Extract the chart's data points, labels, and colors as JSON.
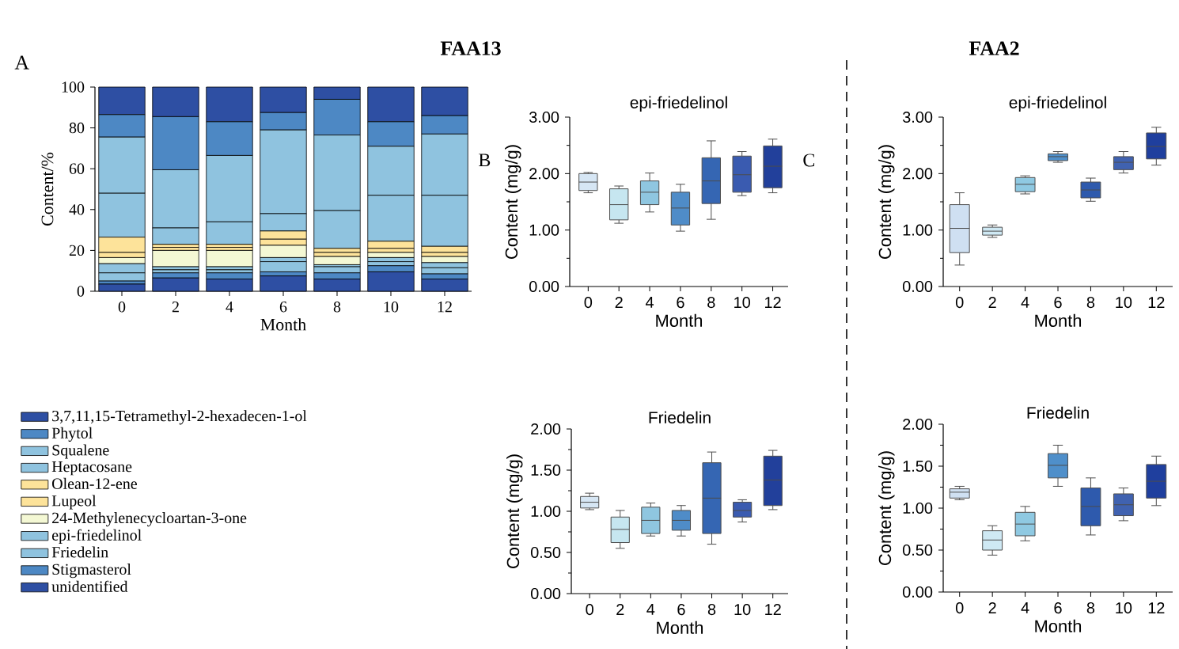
{
  "chart_data": [
    {
      "type": "bar",
      "stacked": true,
      "annotations": [
        "A"
      ],
      "xlabel": "Month",
      "ylabel": "Content/%",
      "categories": [
        "0",
        "2",
        "4",
        "6",
        "8",
        "10",
        "12"
      ],
      "ylim": [
        0,
        100
      ],
      "yticks": [
        0,
        20,
        40,
        60,
        80,
        100
      ],
      "legend": "bottom left",
      "series": [
        {
          "name": "unidentified",
          "color": "#2e4fa3",
          "values": [
            3.5,
            6.5,
            6,
            7.5,
            6,
            9.5,
            6
          ]
        },
        {
          "name": "Stigmasterol",
          "color": "#4d88c4",
          "values": [
            1.5,
            2.5,
            3,
            2,
            3,
            3,
            2.5
          ]
        },
        {
          "name": "Friedelin",
          "color": "#8fc3df",
          "values": [
            4,
            1.5,
            1.5,
            5,
            3,
            2,
            3
          ]
        },
        {
          "name": "epi-friedelinol",
          "color": "#8fc3df",
          "values": [
            4.5,
            1.5,
            1.5,
            2,
            1,
            2,
            2.5
          ]
        },
        {
          "name": "24-Methylenecycloartan-3-one",
          "color": "#f4f8d4",
          "values": [
            3,
            8,
            8,
            6,
            4,
            2.5,
            3
          ]
        },
        {
          "name": "Lupeol",
          "color": "#fde39a",
          "values": [
            2.5,
            1.5,
            1.5,
            3,
            2,
            2,
            2
          ]
        },
        {
          "name": "Olean-12-ene",
          "color": "#fde39a",
          "values": [
            7.5,
            1.5,
            1.5,
            4,
            2,
            3.5,
            3
          ]
        },
        {
          "name": "Heptacosane",
          "color": "#8fc3df",
          "values": [
            21.5,
            8,
            11,
            8.5,
            18.5,
            22.5,
            25
          ]
        },
        {
          "name": "Squalene",
          "color": "#8fc3df",
          "values": [
            27.5,
            28.5,
            32.5,
            41,
            37,
            24,
            30
          ]
        },
        {
          "name": "Phytol",
          "color": "#4d88c4",
          "values": [
            11,
            26,
            16.5,
            8.5,
            17.5,
            12,
            9
          ]
        },
        {
          "name": "3,7,11,15-Tetramethyl-2-hexadecen-1-ol",
          "color": "#2e4fa3",
          "values": [
            13.5,
            14.5,
            17,
            12.5,
            6,
            17,
            14
          ]
        }
      ]
    },
    {
      "type": "box",
      "title": "epi-friedelinol",
      "annotations": [
        "FAA13",
        "B"
      ],
      "xlabel": "Month",
      "ylabel": "Content (mg/g)",
      "categories": [
        "0",
        "2",
        "4",
        "6",
        "8",
        "10",
        "12"
      ],
      "ylim": [
        0,
        3
      ],
      "yticks": [
        {
          "value": 0,
          "label": "0.00"
        },
        {
          "value": 1,
          "label": "1.00"
        },
        {
          "value": 2,
          "label": "2.00"
        },
        {
          "value": 3,
          "label": "3.00"
        }
      ],
      "colors": [
        "#d6e6f4",
        "#c6e6f0",
        "#8fc6e0",
        "#4f8cc8",
        "#3566b3",
        "#3a5bb0",
        "#22409b"
      ],
      "boxes": [
        {
          "low": 1.66,
          "q1": 1.7,
          "median": 1.85,
          "q3": 2.0,
          "high": 2.02
        },
        {
          "low": 1.12,
          "q1": 1.18,
          "median": 1.45,
          "q3": 1.73,
          "high": 1.78
        },
        {
          "low": 1.32,
          "q1": 1.45,
          "median": 1.67,
          "q3": 1.87,
          "high": 2.01
        },
        {
          "low": 0.98,
          "q1": 1.09,
          "median": 1.39,
          "q3": 1.67,
          "high": 1.81
        },
        {
          "low": 1.19,
          "q1": 1.47,
          "median": 1.87,
          "q3": 2.28,
          "high": 2.58
        },
        {
          "low": 1.61,
          "q1": 1.67,
          "median": 1.98,
          "q3": 2.31,
          "high": 2.39
        },
        {
          "low": 1.66,
          "q1": 1.75,
          "median": 2.13,
          "q3": 2.49,
          "high": 2.61
        }
      ]
    },
    {
      "type": "box",
      "title": "Friedelin",
      "xlabel": "Month",
      "ylabel": "Content (mg/g)",
      "categories": [
        "0",
        "2",
        "4",
        "6",
        "8",
        "10",
        "12"
      ],
      "ylim": [
        0,
        2
      ],
      "yticks": [
        {
          "value": 0,
          "label": "0.00"
        },
        {
          "value": 0.5,
          "label": "0.50"
        },
        {
          "value": 1,
          "label": "1.00"
        },
        {
          "value": 1.5,
          "label": "1.50"
        },
        {
          "value": 2,
          "label": "2.00"
        }
      ],
      "colors": [
        "#d6e6f4",
        "#c6e6f0",
        "#8fc6e0",
        "#4f8cc8",
        "#3566b3",
        "#3a5bb0",
        "#22409b"
      ],
      "boxes": [
        {
          "low": 1.02,
          "q1": 1.04,
          "median": 1.11,
          "q3": 1.18,
          "high": 1.22
        },
        {
          "low": 0.55,
          "q1": 0.62,
          "median": 0.78,
          "q3": 0.93,
          "high": 1.01
        },
        {
          "low": 0.7,
          "q1": 0.73,
          "median": 0.89,
          "q3": 1.05,
          "high": 1.1
        },
        {
          "low": 0.7,
          "q1": 0.77,
          "median": 0.89,
          "q3": 1.01,
          "high": 1.07
        },
        {
          "low": 0.6,
          "q1": 0.73,
          "median": 1.16,
          "q3": 1.59,
          "high": 1.72
        },
        {
          "low": 0.87,
          "q1": 0.93,
          "median": 1.01,
          "q3": 1.11,
          "high": 1.14
        },
        {
          "low": 1.02,
          "q1": 1.07,
          "median": 1.38,
          "q3": 1.67,
          "high": 1.74
        }
      ]
    },
    {
      "type": "box",
      "title": "epi-friedelinol",
      "annotations": [
        "FAA2",
        "C"
      ],
      "xlabel": "Month",
      "ylabel": "Content (mg/g)",
      "categories": [
        "0",
        "2",
        "4",
        "6",
        "8",
        "10",
        "12"
      ],
      "ylim": [
        0,
        3
      ],
      "yticks": [
        {
          "value": 0,
          "label": "0.00"
        },
        {
          "value": 1,
          "label": "1.00"
        },
        {
          "value": 2,
          "label": "2.00"
        },
        {
          "value": 3,
          "label": "3.00"
        }
      ],
      "colors": [
        "#cfe0f2",
        "#cfe9f4",
        "#8fc9e2",
        "#4f8fca",
        "#2e5aad",
        "#4062b0",
        "#1f3f9e"
      ],
      "boxes": [
        {
          "low": 0.38,
          "q1": 0.6,
          "median": 1.03,
          "q3": 1.45,
          "high": 1.66
        },
        {
          "low": 0.87,
          "q1": 0.91,
          "median": 0.98,
          "q3": 1.05,
          "high": 1.09
        },
        {
          "low": 1.64,
          "q1": 1.68,
          "median": 1.81,
          "q3": 1.93,
          "high": 1.96
        },
        {
          "low": 2.2,
          "q1": 2.23,
          "median": 2.3,
          "q3": 2.35,
          "high": 2.39
        },
        {
          "low": 1.51,
          "q1": 1.57,
          "median": 1.71,
          "q3": 1.85,
          "high": 1.92
        },
        {
          "low": 2.01,
          "q1": 2.07,
          "median": 2.2,
          "q3": 2.3,
          "high": 2.39
        },
        {
          "low": 2.15,
          "q1": 2.26,
          "median": 2.48,
          "q3": 2.72,
          "high": 2.82
        }
      ]
    },
    {
      "type": "box",
      "title": "Friedelin",
      "xlabel": "Month",
      "ylabel": "Content (mg/g)",
      "categories": [
        "0",
        "2",
        "4",
        "6",
        "8",
        "10",
        "12"
      ],
      "ylim": [
        0,
        2
      ],
      "yticks": [
        {
          "value": 0,
          "label": "0.00"
        },
        {
          "value": 0.5,
          "label": "0.50"
        },
        {
          "value": 1,
          "label": "1.00"
        },
        {
          "value": 1.5,
          "label": "1.50"
        },
        {
          "value": 2,
          "label": "2.00"
        }
      ],
      "colors": [
        "#cfe0f2",
        "#cfe9f4",
        "#8fc9e2",
        "#4f8fca",
        "#2e5aad",
        "#4062b0",
        "#1f3f9e"
      ],
      "boxes": [
        {
          "low": 1.1,
          "q1": 1.12,
          "median": 1.19,
          "q3": 1.23,
          "high": 1.26
        },
        {
          "low": 0.44,
          "q1": 0.5,
          "median": 0.62,
          "q3": 0.73,
          "high": 0.79
        },
        {
          "low": 0.61,
          "q1": 0.67,
          "median": 0.81,
          "q3": 0.95,
          "high": 1.02
        },
        {
          "low": 1.26,
          "q1": 1.36,
          "median": 1.51,
          "q3": 1.65,
          "high": 1.75
        },
        {
          "low": 0.68,
          "q1": 0.79,
          "median": 1.02,
          "q3": 1.24,
          "high": 1.36
        },
        {
          "low": 0.85,
          "q1": 0.91,
          "median": 1.04,
          "q3": 1.17,
          "high": 1.24
        },
        {
          "low": 1.03,
          "q1": 1.12,
          "median": 1.32,
          "q3": 1.52,
          "high": 1.62
        }
      ]
    }
  ]
}
